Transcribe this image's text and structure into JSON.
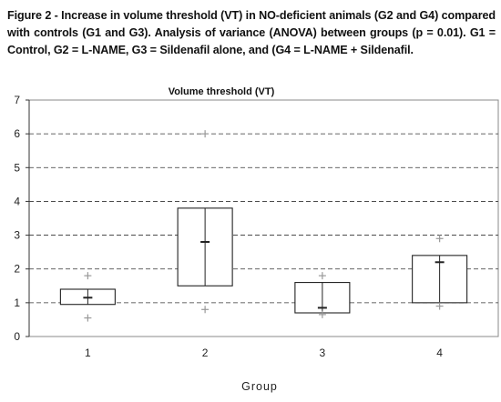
{
  "caption": "Figure 2 - Increase in volume threshold (VT) in NO-deficient animals (G2 and G4) compared with controls (G1 and G3). Analysis of variance (ANOVA) between groups (p = 0.01). G1 = Control, G2 = L-NAME, G3 = Sildenafil alone, and (G4 = L-NAME + Sildenafil.",
  "chart_data": {
    "type": "box",
    "title": "Volume threshold (VT)",
    "xlabel": "Group",
    "ylabel": "",
    "categories": [
      "1",
      "2",
      "3",
      "4"
    ],
    "ylim": [
      0,
      7
    ],
    "yticks": [
      0,
      1,
      2,
      3,
      4,
      5,
      6,
      7
    ],
    "grid": "horizontal dashed",
    "legend": "none",
    "series": [
      {
        "boxes": [
          {
            "group": "1",
            "q1": 0.95,
            "q3": 1.4,
            "median": 1.15,
            "max": 1.8,
            "min": 0.55
          },
          {
            "group": "2",
            "q1": 1.5,
            "q3": 3.8,
            "median": 2.8,
            "max": 6.0,
            "min": 0.8
          },
          {
            "group": "3",
            "q1": 0.7,
            "q3": 1.6,
            "median": 0.85,
            "max": 1.8,
            "min": 0.65
          },
          {
            "group": "4",
            "q1": 1.0,
            "q3": 2.4,
            "median": 2.2,
            "max": 2.9,
            "min": 0.9
          }
        ]
      }
    ]
  }
}
